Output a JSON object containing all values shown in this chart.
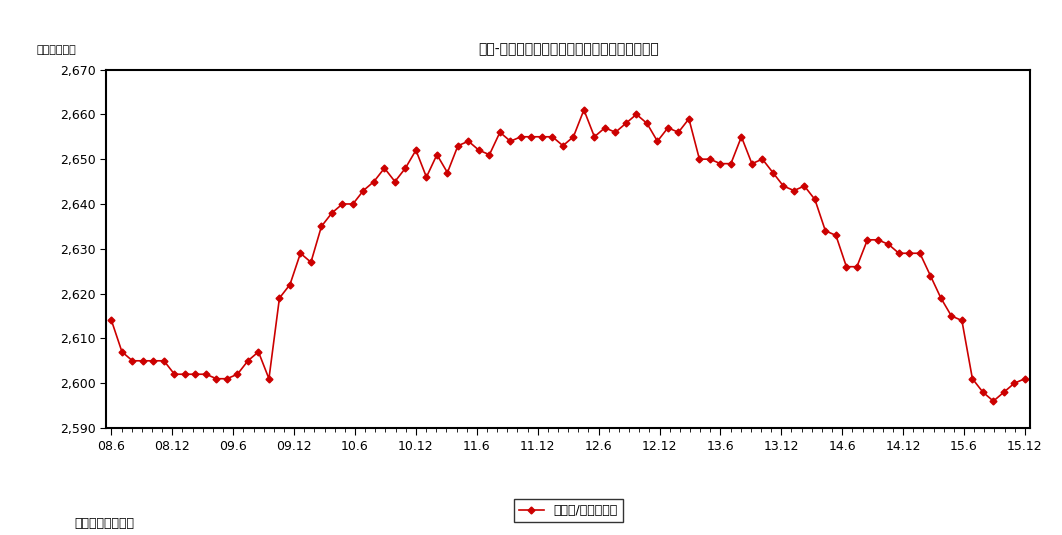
{
  "title": "図表-５　東京都心５区の賃貸オフィスビル棟数",
  "ylabel": "ビル数（棟）",
  "source": "（出所）三鬼商事",
  "legend_label": "ビル数/合計（棟）",
  "line_color": "#CC0000",
  "marker": "D",
  "marker_size": 3.5,
  "ylim": [
    2590,
    2670
  ],
  "yticks": [
    2590,
    2600,
    2610,
    2620,
    2630,
    2640,
    2650,
    2660,
    2670
  ],
  "x_labels": [
    "08.6",
    "08.12",
    "09.6",
    "09.12",
    "10.6",
    "10.12",
    "11.6",
    "11.12",
    "12.6",
    "12.12",
    "13.6",
    "13.12",
    "14.6",
    "14.12",
    "15.6",
    "15.12"
  ],
  "values": [
    2614,
    2607,
    2605,
    2605,
    2605,
    2605,
    2602,
    2602,
    2602,
    2602,
    2601,
    2601,
    2602,
    2605,
    2607,
    2601,
    2619,
    2622,
    2629,
    2627,
    2635,
    2638,
    2640,
    2640,
    2643,
    2645,
    2648,
    2645,
    2648,
    2652,
    2646,
    2651,
    2647,
    2653,
    2654,
    2652,
    2651,
    2656,
    2654,
    2655,
    2655,
    2655,
    2655,
    2653,
    2655,
    2661,
    2655,
    2657,
    2656,
    2658,
    2660,
    2658,
    2654,
    2657,
    2656,
    2659,
    2650,
    2650,
    2649,
    2649,
    2655,
    2649,
    2650,
    2647,
    2644,
    2643,
    2644,
    2641,
    2634,
    2633,
    2626,
    2626,
    2632,
    2632,
    2631,
    2629,
    2629,
    2629,
    2624,
    2619,
    2615,
    2614,
    2601,
    2598,
    2596,
    2598,
    2600,
    2601
  ],
  "background_color": "#FFFFFF",
  "plot_bg_color": "#FFFFFF",
  "spine_color": "#000000"
}
